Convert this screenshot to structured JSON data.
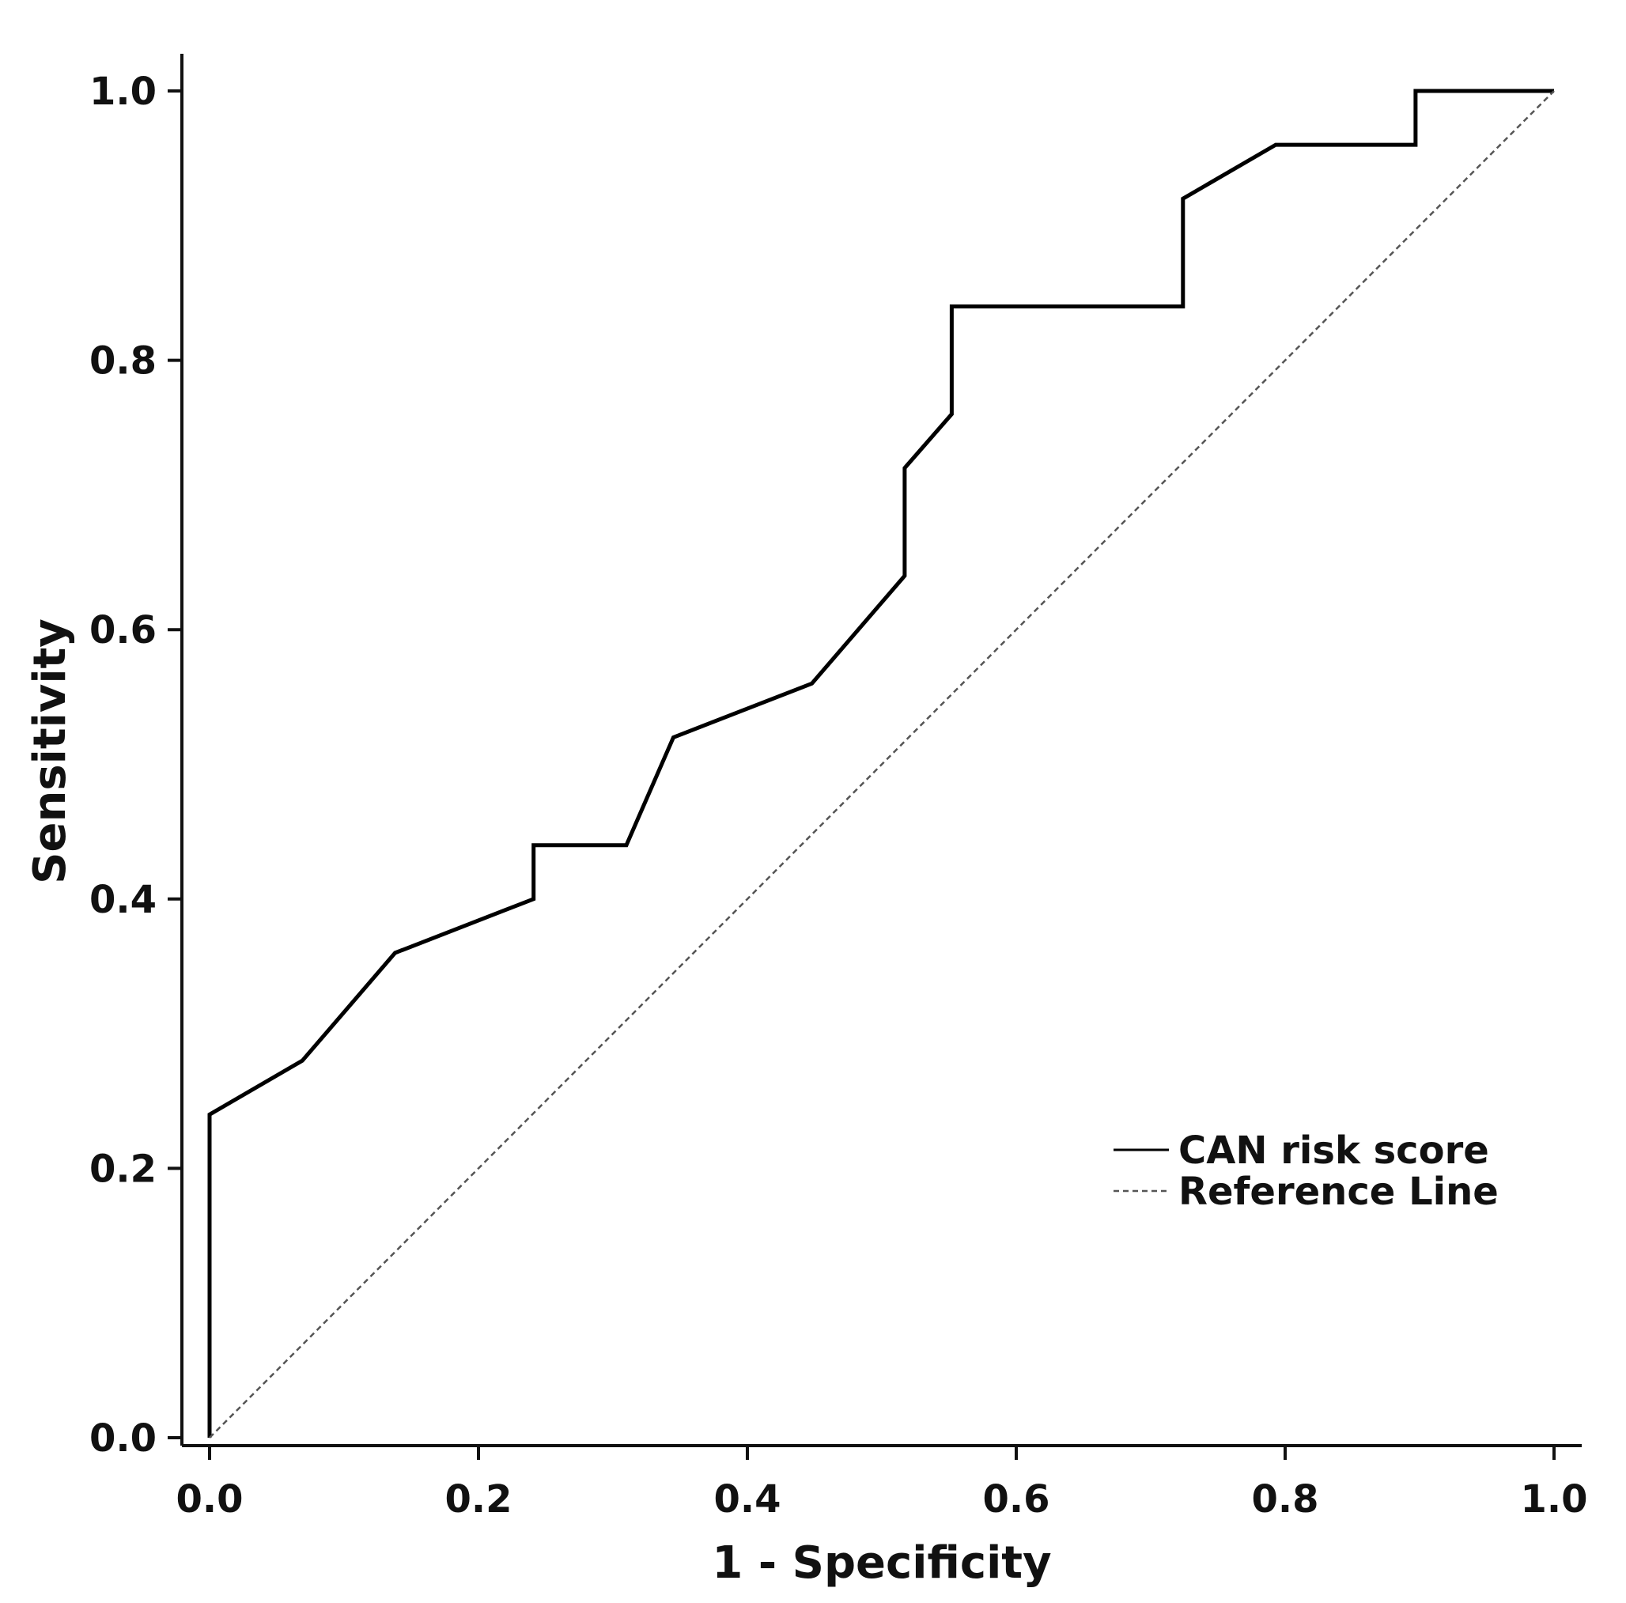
{
  "chart_data": {
    "type": "line",
    "title": "",
    "xlabel": "1 - Specificity",
    "ylabel": "Sensitivity",
    "xlim": [
      0.0,
      1.0
    ],
    "ylim": [
      0.0,
      1.0
    ],
    "xticks": [
      "0.0",
      "0.2",
      "0.4",
      "0.6",
      "0.8",
      "1.0"
    ],
    "yticks": [
      "0.0",
      "0.2",
      "0.4",
      "0.6",
      "0.8",
      "1.0"
    ],
    "grid": false,
    "legend_position": "bottom-right",
    "series": [
      {
        "name": "CAN risk score",
        "style": "solid",
        "color": "#000000",
        "x": [
          0.0,
          0.0,
          0.069,
          0.138,
          0.241,
          0.241,
          0.31,
          0.345,
          0.448,
          0.517,
          0.517,
          0.552,
          0.552,
          0.724,
          0.724,
          0.793,
          0.897,
          0.897,
          1.0
        ],
        "y": [
          0.0,
          0.24,
          0.28,
          0.36,
          0.4,
          0.44,
          0.44,
          0.52,
          0.56,
          0.64,
          0.72,
          0.76,
          0.84,
          0.84,
          0.92,
          0.96,
          0.96,
          1.0,
          1.0
        ]
      },
      {
        "name": "Reference Line",
        "style": "dotted",
        "color": "#555555",
        "x": [
          0.0,
          1.0
        ],
        "y": [
          0.0,
          1.0
        ]
      }
    ]
  }
}
